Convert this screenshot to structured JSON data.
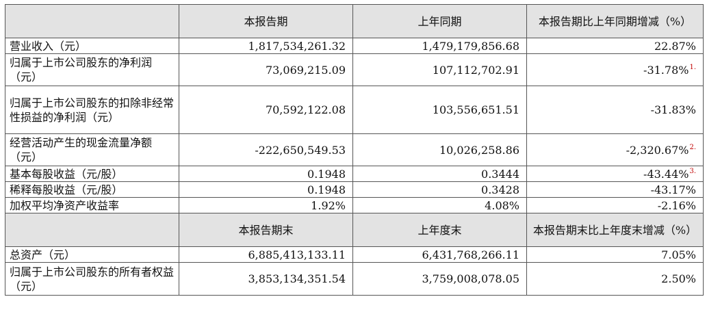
{
  "header1": {
    "col1": "本报告期",
    "col2": "上年同期",
    "col3": "本报告期比上年同期增减（%）"
  },
  "rows1": [
    {
      "label": "营业收入（元）",
      "current": "1,817,534,261.32",
      "prior": "1,479,179,856.68",
      "change": "22.87%",
      "note": ""
    },
    {
      "label": "归属于上市公司股东的净利润（元）",
      "current": "73,069,215.09",
      "prior": "107,112,702.91",
      "change": "-31.78%",
      "note": "1."
    },
    {
      "label": "归属于上市公司股东的扣除非经常性损益的净利润（元）",
      "current": "70,592,122.08",
      "prior": "103,556,651.51",
      "change": "-31.83%",
      "note": ""
    },
    {
      "label": "经营活动产生的现金流量净额（元）",
      "current": "-222,650,549.53",
      "prior": "10,026,258.86",
      "change": "-2,320.67%",
      "note": "2."
    },
    {
      "label": "基本每股收益（元/股）",
      "current": "0.1948",
      "prior": "0.3444",
      "change": "-43.44%",
      "note": "3."
    },
    {
      "label": "稀释每股收益（元/股）",
      "current": "0.1948",
      "prior": "0.3428",
      "change": "-43.17%",
      "note": ""
    },
    {
      "label": "加权平均净资产收益率",
      "current": "1.92%",
      "prior": "4.08%",
      "change": "-2.16%",
      "note": ""
    }
  ],
  "header2": {
    "col1": "本报告期末",
    "col2": "上年度末",
    "col3": "本报告期末比上年度末增减（%）"
  },
  "rows2": [
    {
      "label": "总资产（元）",
      "current": "6,885,413,133.11",
      "prior": "6,431,768,266.11",
      "change": "7.05%",
      "note": ""
    },
    {
      "label": "归属于上市公司股东的所有者权益（元）",
      "current": "3,853,134,351.54",
      "prior": "3,759,008,078.05",
      "change": "2.50%",
      "note": ""
    }
  ]
}
